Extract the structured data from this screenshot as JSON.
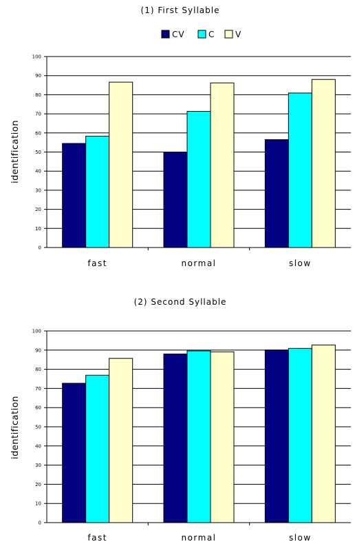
{
  "legend": [
    {
      "label": "CV",
      "color": "#000080"
    },
    {
      "label": "C",
      "color": "#00FFFF"
    },
    {
      "label": "V",
      "color": "#FFFFCC"
    }
  ],
  "chart_data": [
    {
      "type": "bar",
      "title": "(1) First Syllable",
      "xlabel": "",
      "ylabel": "identification",
      "ylim": [
        0,
        100
      ],
      "yticks": [
        0,
        10,
        20,
        30,
        40,
        50,
        60,
        70,
        80,
        90,
        100
      ],
      "categories": [
        "fast",
        "normal",
        "slow"
      ],
      "grid": "horizontal",
      "legend_position": "top",
      "series": [
        {
          "name": "CV",
          "values": [
            54.5,
            50,
            56.5
          ]
        },
        {
          "name": "C",
          "values": [
            58.3,
            71.3,
            80.9
          ]
        },
        {
          "name": "V",
          "values": [
            86.6,
            86.2,
            88
          ]
        }
      ]
    },
    {
      "type": "bar",
      "title": "(2) Second Syllable",
      "xlabel": "",
      "ylabel": "identification",
      "ylim": [
        0,
        100
      ],
      "yticks": [
        0,
        10,
        20,
        30,
        40,
        50,
        60,
        70,
        80,
        90,
        100
      ],
      "categories": [
        "fast",
        "normal",
        "slow"
      ],
      "grid": "horizontal",
      "legend_position": "none",
      "series": [
        {
          "name": "CV",
          "values": [
            72.7,
            88,
            90.1
          ]
        },
        {
          "name": "C",
          "values": [
            76.9,
            89.6,
            90.9
          ]
        },
        {
          "name": "V",
          "values": [
            85.7,
            89.1,
            92.7
          ]
        }
      ]
    }
  ]
}
